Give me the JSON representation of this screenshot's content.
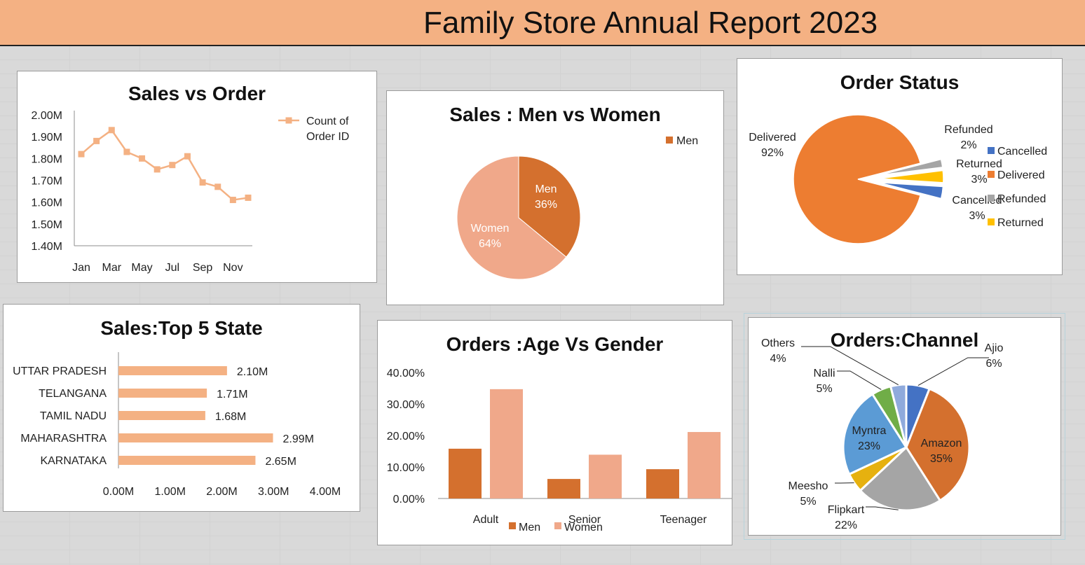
{
  "header": {
    "title": "Family Store Annual Report 2023"
  },
  "charts": {
    "sales_vs_order": {
      "title": "Sales vs Order",
      "legend": "Count of Order ID",
      "legend_line1": "Count of",
      "legend_line2": "Order ID",
      "color": "#f4b183",
      "ytick_labels": [
        "2.00M",
        "1.90M",
        "1.80M",
        "1.70M",
        "1.60M",
        "1.50M",
        "1.40M"
      ],
      "xtick_labels": [
        "Jan",
        "Mar",
        "May",
        "Jul",
        "Sep",
        "Nov"
      ]
    },
    "men_vs_women": {
      "title": "Sales : Men vs Women",
      "legend": "Men"
    },
    "order_status": {
      "title": "Order Status",
      "legend": [
        "Cancelled",
        "Delivered",
        "Refunded",
        "Returned"
      ]
    },
    "top5_state": {
      "title": "Sales:Top 5 State",
      "color": "#f4b183",
      "xtick_labels": [
        "0.00M",
        "1.00M",
        "2.00M",
        "3.00M",
        "4.00M"
      ]
    },
    "age_vs_gender": {
      "title": "Orders :Age Vs Gender",
      "ytick_labels": [
        "40.00%",
        "30.00%",
        "20.00%",
        "10.00%",
        "0.00%"
      ],
      "legend": [
        "Men",
        "Women"
      ]
    },
    "channel": {
      "title": "Orders:Channel"
    }
  },
  "chart_data": [
    {
      "type": "line",
      "title": "Sales vs Order",
      "x": [
        "Jan",
        "Feb",
        "Mar",
        "Apr",
        "May",
        "Jun",
        "Jul",
        "Aug",
        "Sep",
        "Oct",
        "Nov",
        "Dec"
      ],
      "series": [
        {
          "name": "Count of Order ID",
          "values": [
            1.82,
            1.88,
            1.93,
            1.83,
            1.8,
            1.75,
            1.77,
            1.81,
            1.69,
            1.67,
            1.61,
            1.62
          ]
        }
      ],
      "ylim": [
        1.4,
        2.0
      ],
      "legend_position": "right"
    },
    {
      "type": "pie",
      "title": "Sales : Men vs Women",
      "categories": [
        "Men",
        "Women"
      ],
      "values": [
        36,
        64
      ],
      "value_labels": [
        "36%",
        "64%"
      ],
      "colors": [
        "#d4702e",
        "#f0a88a"
      ],
      "legend_position": "top-right"
    },
    {
      "type": "pie",
      "title": "Order Status",
      "categories": [
        "Cancelled",
        "Delivered",
        "Refunded",
        "Returned"
      ],
      "values": [
        3,
        92,
        2,
        3
      ],
      "value_labels": [
        "3%",
        "92%",
        "2%",
        "3%"
      ],
      "colors": [
        "#4472c4",
        "#ed7d31",
        "#a5a5a5",
        "#ffc000"
      ],
      "legend_position": "right"
    },
    {
      "type": "bar",
      "orientation": "horizontal",
      "title": "Sales:Top 5 State",
      "categories": [
        "UTTAR PRADESH",
        "TELANGANA",
        "TAMIL NADU",
        "MAHARASHTRA",
        "KARNATAKA"
      ],
      "values": [
        2.1,
        1.71,
        1.68,
        2.99,
        2.65
      ],
      "value_labels": [
        "2.10M",
        "1.71M",
        "1.68M",
        "2.99M",
        "2.65M"
      ],
      "xlim": [
        0,
        4
      ]
    },
    {
      "type": "bar",
      "title": "Orders :Age Vs Gender",
      "categories": [
        "Adult",
        "Senior",
        "Teenager"
      ],
      "series": [
        {
          "name": "Men",
          "values": [
            15.8,
            6.2,
            9.3
          ],
          "color": "#d4702e"
        },
        {
          "name": "Women",
          "values": [
            34.7,
            13.9,
            21.1
          ],
          "color": "#f0a88a"
        }
      ],
      "ylim": [
        0,
        40
      ],
      "legend_position": "bottom"
    },
    {
      "type": "pie",
      "title": "Orders:Channel",
      "categories": [
        "Ajio",
        "Amazon",
        "Flipkart",
        "Meesho",
        "Myntra",
        "Nalli",
        "Others"
      ],
      "values": [
        6,
        35,
        22,
        5,
        23,
        5,
        4
      ],
      "value_labels": [
        "6%",
        "35%",
        "22%",
        "5%",
        "23%",
        "5%",
        "4%"
      ],
      "colors": [
        "#4472c4",
        "#d4702e",
        "#a5a5a5",
        "#e6b10f",
        "#5b9bd5",
        "#70ad47",
        "#8faadc"
      ]
    }
  ]
}
